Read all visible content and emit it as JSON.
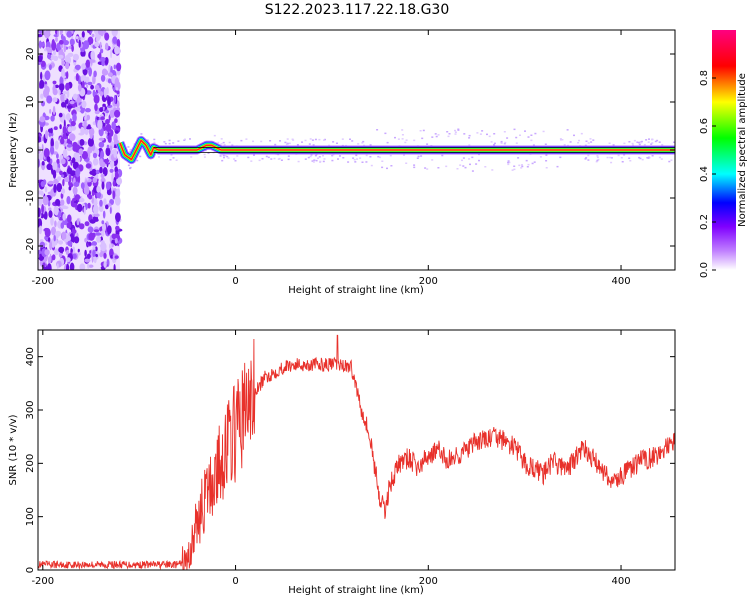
{
  "figure": {
    "title": "S122.2023.117.22.18.G30"
  },
  "chart_data": [
    {
      "type": "heatmap",
      "xlabel": "Height of straight line (km)",
      "ylabel": "Frequency (Hz)",
      "xlim": [
        -205,
        456
      ],
      "ylim": [
        -25,
        25
      ],
      "xticks": [
        -200,
        0,
        200,
        400
      ],
      "yticks": [
        -20,
        -10,
        0,
        10,
        20
      ],
      "grid": false,
      "colorbar": {
        "label": "Normalized spectral amplitude",
        "range": [
          0,
          1
        ],
        "ticks": [
          "0.0",
          "0.2",
          "0.4",
          "0.6",
          "0.8"
        ],
        "colormap": [
          "#ffffff",
          "#a000ff",
          "#0000ff",
          "#00ffff",
          "#00ff00",
          "#ffff00",
          "#ff0000",
          "#ff0080"
        ]
      },
      "noise_region": {
        "x": [
          -205,
          -120
        ],
        "y": [
          -25,
          25
        ]
      },
      "ridge": {
        "x": [
          -120,
          -115,
          -108,
          -103,
          -98,
          -93,
          -88,
          -85,
          -80,
          -60,
          -40,
          -30,
          -25,
          -20,
          -15,
          0,
          456
        ],
        "y": [
          1.5,
          -1,
          -2,
          0,
          2,
          1,
          -1,
          0.5,
          0,
          0,
          0,
          1,
          1,
          0.5,
          0,
          0,
          0
        ]
      },
      "reference_lines": [
        0.5,
        -0.5
      ]
    },
    {
      "type": "line",
      "xlabel": "Height of straight line (km)",
      "ylabel": "SNR (10 * v/v)",
      "xlim": [
        -205,
        456
      ],
      "ylim": [
        0,
        450
      ],
      "xticks": [
        -200,
        0,
        200,
        400
      ],
      "yticks": [
        0,
        100,
        200,
        300,
        400
      ],
      "grid": false,
      "series": [
        {
          "color": "#e8312b",
          "x": [
            -205,
            -150,
            -100,
            -60,
            -50,
            -45,
            -40,
            -30,
            -20,
            -10,
            0,
            10,
            20,
            30,
            40,
            50,
            60,
            70,
            80,
            90,
            100,
            110,
            120,
            130,
            135,
            140,
            145,
            150,
            155,
            160,
            170,
            180,
            190,
            200,
            210,
            220,
            230,
            240,
            250,
            260,
            270,
            280,
            290,
            300,
            310,
            320,
            330,
            340,
            350,
            360,
            370,
            380,
            390,
            400,
            410,
            420,
            430,
            440,
            450,
            456
          ],
          "y": [
            10,
            10,
            10,
            10,
            15,
            50,
            90,
            140,
            180,
            230,
            260,
            300,
            330,
            360,
            370,
            380,
            385,
            385,
            385,
            385,
            385,
            385,
            380,
            310,
            280,
            240,
            190,
            130,
            110,
            160,
            200,
            210,
            190,
            215,
            225,
            205,
            215,
            225,
            240,
            245,
            250,
            240,
            230,
            200,
            190,
            180,
            205,
            190,
            200,
            230,
            210,
            190,
            165,
            175,
            190,
            205,
            210,
            220,
            230,
            240
          ]
        }
      ]
    }
  ]
}
